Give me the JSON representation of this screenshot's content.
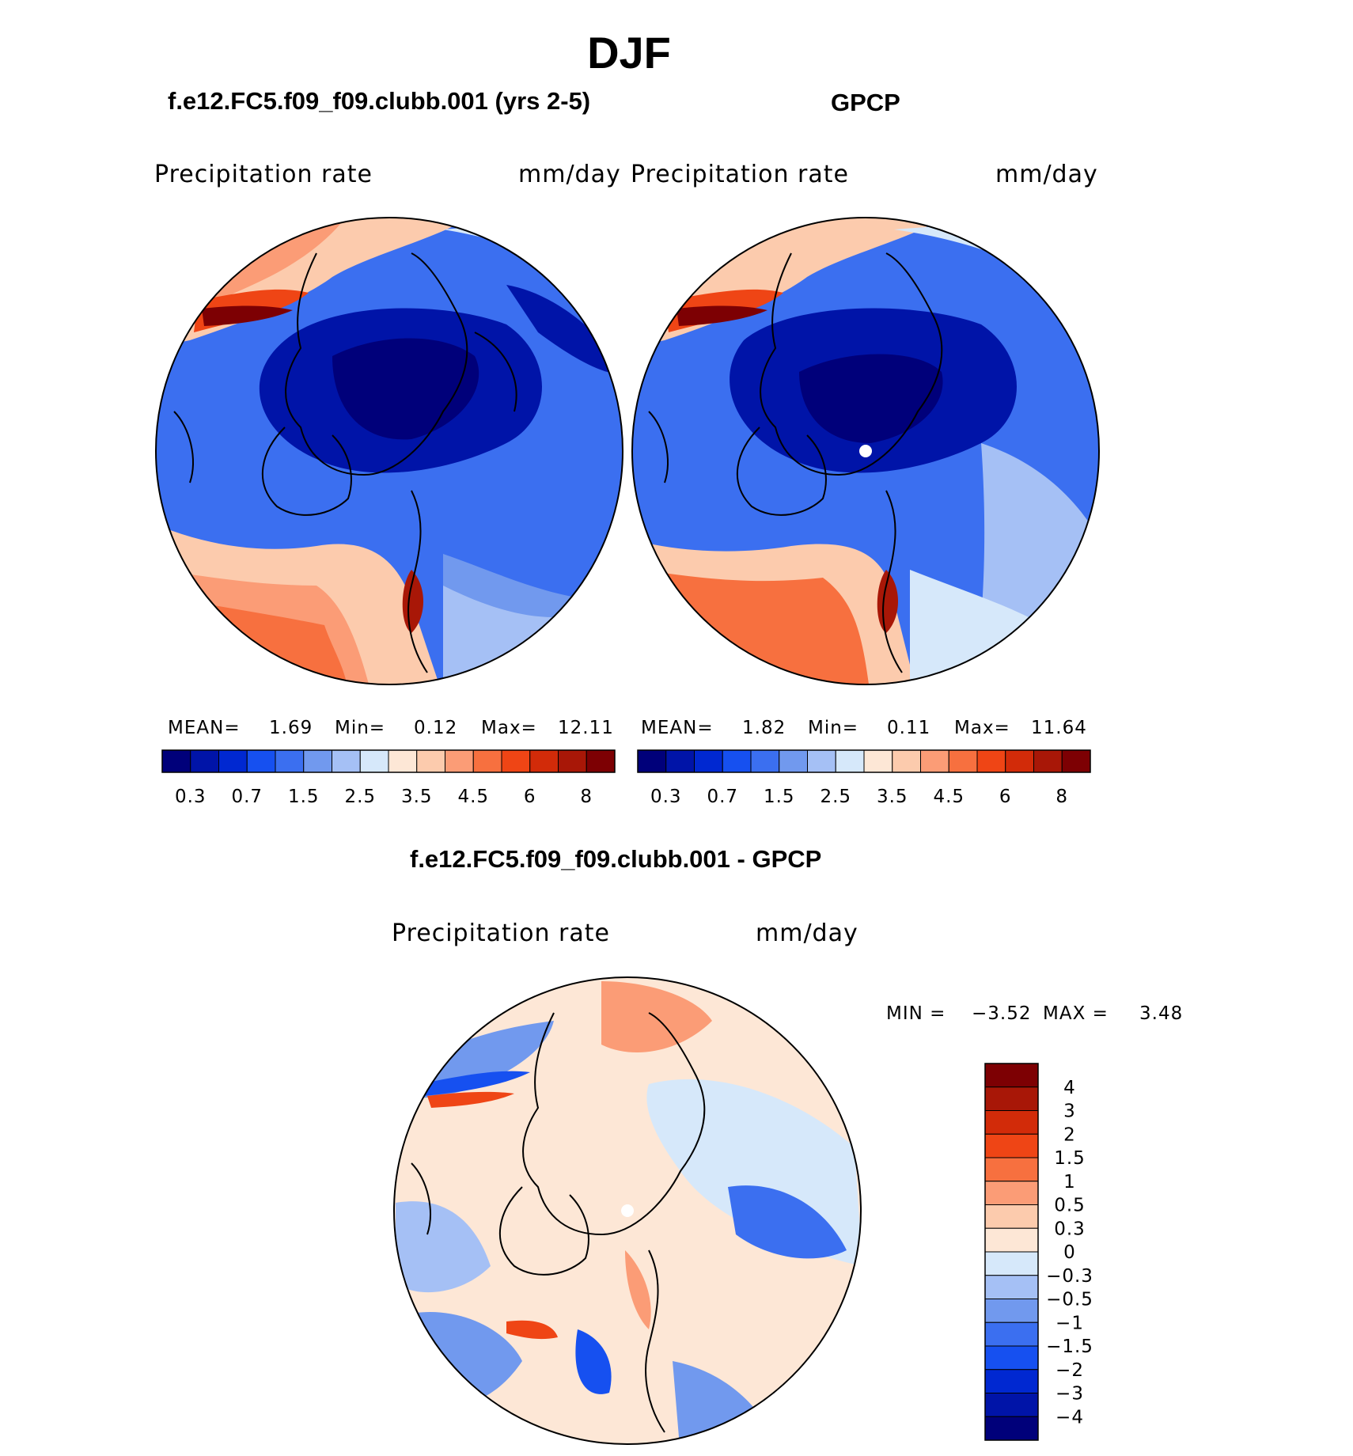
{
  "figure": {
    "title": "DJF"
  },
  "panels": [
    {
      "id": "model",
      "case_title": "f.e12.FC5.f09_f09.clubb.001 (yrs 2-5)",
      "variable": "Precipitation rate",
      "units": "mm/day",
      "stats": {
        "mean_label": "MEAN=",
        "mean": "1.69",
        "min_label": "Min=",
        "min": "0.12",
        "max_label": "Max=",
        "max": "12.11"
      }
    },
    {
      "id": "obs",
      "case_title": "GPCP",
      "variable": "Precipitation rate",
      "units": "mm/day",
      "stats": {
        "mean_label": "MEAN=",
        "mean": "1.82",
        "min_label": "Min=",
        "min": "0.11",
        "max_label": "Max=",
        "max": "11.64"
      }
    }
  ],
  "difference": {
    "title": "f.e12.FC5.f09_f09.clubb.001 - GPCP",
    "variable": "Precipitation rate",
    "units": "mm/day",
    "stats": {
      "min_label": "MIN =",
      "min": "−3.52",
      "max_label": "MAX =",
      "max": "3.48"
    }
  },
  "colors": {
    "seq": [
      "#00007a",
      "#0014a8",
      "#0028d1",
      "#1650f0",
      "#3b6ff0",
      "#7199ee",
      "#a5c0f5",
      "#d6e8fa",
      "#fde7d6",
      "#fccbad",
      "#fb9c76",
      "#f7703f",
      "#ef4515",
      "#d22b09",
      "#a81707",
      "#7d0003"
    ],
    "div": [
      "#00007a",
      "#0014a8",
      "#0028d1",
      "#1650f0",
      "#3b6ff0",
      "#7199ee",
      "#a5c0f5",
      "#d6e8fa",
      "#fde7d6",
      "#fccbad",
      "#fb9c76",
      "#f7703f",
      "#ef4515",
      "#d22b09",
      "#a81707",
      "#7d0003"
    ],
    "coast": "#000000"
  },
  "chart_data": [
    {
      "type": "heatmap",
      "projection": "north-polar-stereographic",
      "title": "f.e12.FC5.f09_f09.clubb.001 (yrs 2-5)",
      "variable": "Precipitation rate",
      "units": "mm/day",
      "colorbar_levels": [
        0.2,
        0.3,
        0.5,
        0.7,
        1,
        1.5,
        2,
        2.5,
        3,
        3.5,
        4,
        4.5,
        5,
        6,
        7,
        8
      ],
      "colorbar_labels": [
        "0.3",
        "0.7",
        "1.5",
        "2.5",
        "3.5",
        "4.5",
        "6",
        "8"
      ],
      "mean": 1.69,
      "min": 0.12,
      "max": 12.11
    },
    {
      "type": "heatmap",
      "projection": "north-polar-stereographic",
      "title": "GPCP",
      "variable": "Precipitation rate",
      "units": "mm/day",
      "colorbar_levels": [
        0.2,
        0.3,
        0.5,
        0.7,
        1,
        1.5,
        2,
        2.5,
        3,
        3.5,
        4,
        4.5,
        5,
        6,
        7,
        8
      ],
      "colorbar_labels": [
        "0.3",
        "0.7",
        "1.5",
        "2.5",
        "3.5",
        "4.5",
        "6",
        "8"
      ],
      "mean": 1.82,
      "min": 0.11,
      "max": 11.64
    },
    {
      "type": "heatmap",
      "projection": "north-polar-stereographic",
      "title": "f.e12.FC5.f09_f09.clubb.001 - GPCP",
      "variable": "Precipitation rate",
      "units": "mm/day",
      "colorbar_labels": [
        "4",
        "3",
        "2",
        "1.5",
        "1",
        "0.5",
        "0.3",
        "0",
        "−0.3",
        "−0.5",
        "−1",
        "−1.5",
        "−2",
        "−3",
        "−4"
      ],
      "min": -3.52,
      "max": 3.48
    }
  ]
}
